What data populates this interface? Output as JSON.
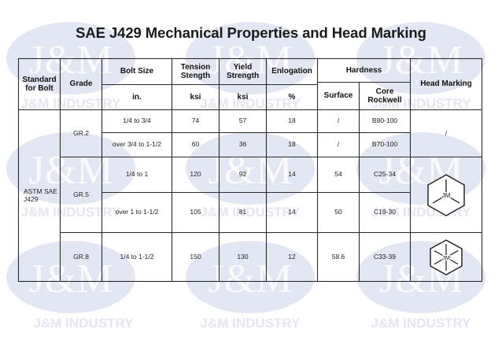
{
  "title": "SAE J429 Mechanical Properties and Head Marking",
  "watermark": {
    "logo": "J&M",
    "text": "J&M INDUSTRY",
    "color": "#dfe2f1"
  },
  "headers": {
    "standard": "Standard for Bolt",
    "grade": "Grade",
    "bolt_size": "Bolt Size",
    "bolt_size_unit": "in.",
    "tension": "Tension Stength",
    "tension_unit": "ksi",
    "yield": "Yield Strength",
    "yield_unit": "ksi",
    "elongation": "Enlogation",
    "elongation_unit": "%",
    "hardness": "Hardness",
    "surface": "Surface",
    "core": "Core Rockwell",
    "head_marking": "Head Marking"
  },
  "standard": "ASTM SAE J429",
  "grades": {
    "gr2": "GR.2",
    "gr5": "GR.5",
    "gr8": "GR.8"
  },
  "rows": [
    {
      "size": "1/4 to 3/4",
      "tension": "74",
      "yield": "57",
      "elong": "18",
      "surface": "/",
      "core": "B80-100"
    },
    {
      "size": "over 3/4 to 1-1/2",
      "tension": "60",
      "yield": "36",
      "elong": "18",
      "surface": "/",
      "core": "B70-100"
    },
    {
      "size": "1/4 to 1",
      "tension": "120",
      "yield": "92",
      "elong": "14",
      "surface": "54",
      "core": "C25-34"
    },
    {
      "size": "over 1 to 1-1/2",
      "tension": "105",
      "yield": "81",
      "elong": "14",
      "surface": "50",
      "core": "C19-30"
    },
    {
      "size": "1/4 to 1-1/2",
      "tension": "150",
      "yield": "130",
      "elong": "12",
      "surface": "58.6",
      "core": "C33-39"
    }
  ],
  "head_marks": {
    "gr2": "/",
    "gr5_icon": "hex-head-3-lines-icon",
    "gr8_icon": "hex-head-6-lines-icon",
    "mark_text": "JM"
  },
  "colors": {
    "border": "#2b2b2b",
    "text": "#1a1a1a"
  }
}
